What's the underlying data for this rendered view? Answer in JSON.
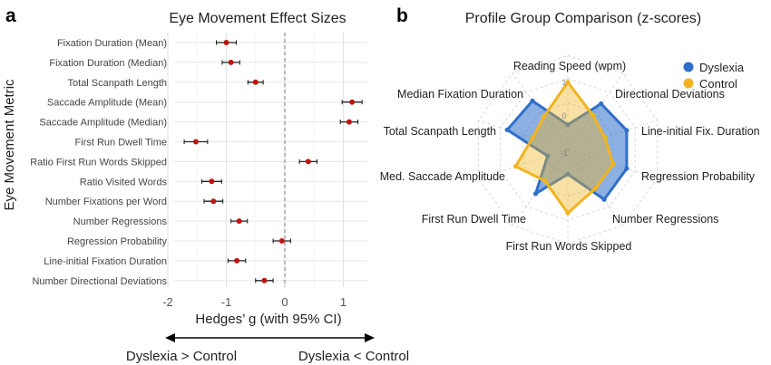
{
  "panel_a": {
    "letter": "a",
    "chart_data": {
      "type": "forest",
      "title": "Eye Movement Effect Sizes",
      "xlabel": "Hedges’ g (with 95% CI)",
      "ylabel": "Eye Movement Metric",
      "xlim": [
        -2,
        1.4
      ],
      "xticks": [
        "-2",
        "-1",
        "0",
        "1"
      ],
      "grid": true,
      "reference_line": 0,
      "metrics": [
        "Fixation Duration (Mean)",
        "Fixation Duration (Median)",
        "Total Scanpath Length",
        "Saccade Amplitude (Mean)",
        "Saccade Amplitude (Median)",
        "First Run Dwell Time",
        "Ratio First Run Words Skipped",
        "Ratio Visited Words",
        "Number Fixations per Word",
        "Number Regressions",
        "Regression Probability",
        "Line-initial Fixation Duration",
        "Number Directional Deviations"
      ],
      "estimates": [
        -1.0,
        -0.92,
        -0.5,
        1.15,
        1.1,
        -1.52,
        0.4,
        -1.25,
        -1.22,
        -0.78,
        -0.05,
        -0.82,
        -0.35
      ],
      "ci_low": [
        -1.17,
        -1.07,
        -0.63,
        0.98,
        0.95,
        -1.72,
        0.25,
        -1.42,
        -1.38,
        -0.92,
        -0.2,
        -0.97,
        -0.5
      ],
      "ci_high": [
        -0.83,
        -0.77,
        -0.37,
        1.32,
        1.25,
        -1.32,
        0.55,
        -1.08,
        -1.06,
        -0.64,
        0.1,
        -0.67,
        -0.2
      ],
      "colors": {
        "point": "#c0150f",
        "error_bar": "#222222"
      }
    },
    "direction": {
      "left": "Dyslexia > Control",
      "right": "Dyslexia < Control"
    }
  },
  "panel_b": {
    "letter": "b",
    "chart_data": {
      "type": "radar",
      "title": "Profile Group Comparison (z-scores)",
      "axes": [
        "Reading Speed (wpm)",
        "Directional Deviations",
        "Line-initial Fix. Duration",
        "Regression Probability",
        "Number Regressions",
        "First Run Words Skipped",
        "First Run Dwell Time",
        "Med. Saccade Amplitude",
        "Total Scanpath Length",
        "Median Fixation Duration"
      ],
      "range": [
        -1,
        1
      ],
      "ring_labels": [
        "1",
        "0",
        "-1"
      ],
      "series": [
        {
          "name": "Dyslexia",
          "color": "#2f6fca",
          "values": [
            -0.3,
            0.6,
            0.75,
            0.75,
            0.75,
            -0.3,
            0.55,
            -0.4,
            0.8,
            0.7
          ]
        },
        {
          "name": "Control",
          "color": "#f1b41f",
          "values": [
            0.9,
            0.2,
            0.1,
            0.35,
            0.35,
            0.8,
            0.1,
            0.55,
            0.05,
            0.15
          ]
        }
      ],
      "legend_position": "top-right"
    }
  }
}
